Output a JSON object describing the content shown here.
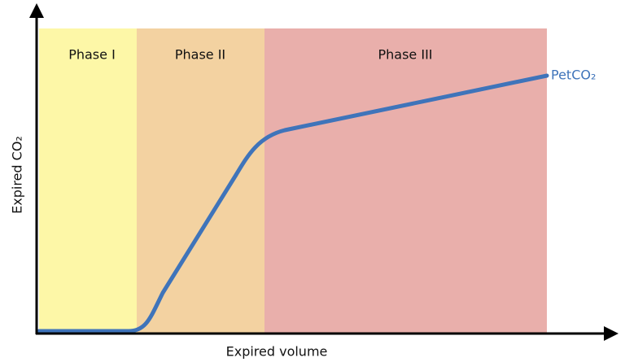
{
  "phases": [
    {
      "label": "Phase I"
    },
    {
      "label": "Phase II"
    },
    {
      "label": "Phase III"
    }
  ],
  "x_axis": {
    "label": "Expired volume"
  },
  "y_axis": {
    "label": "Expired CO₂"
  },
  "curve": {
    "label": "PetCO₂"
  }
}
